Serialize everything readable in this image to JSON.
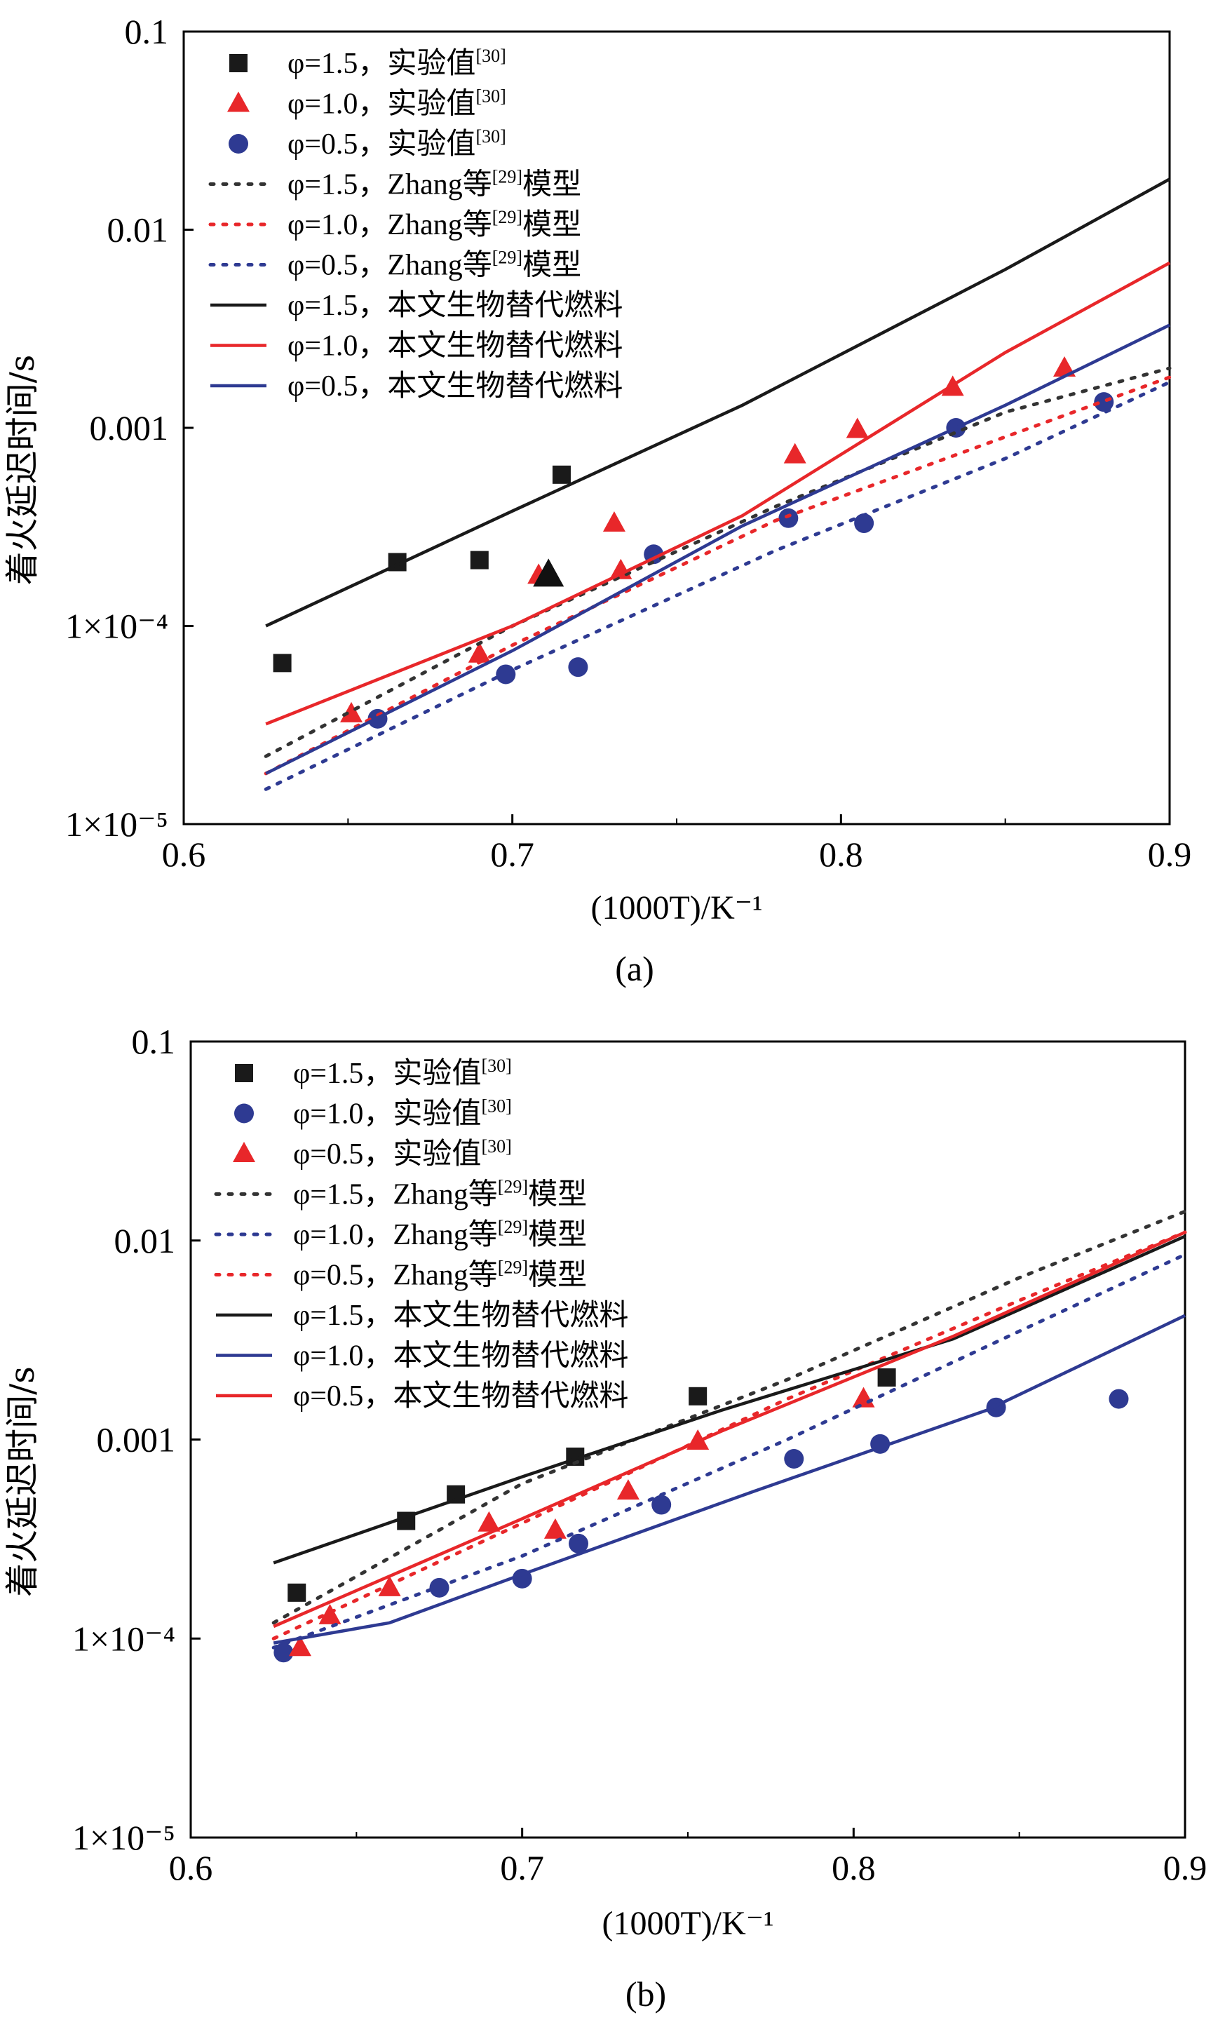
{
  "chart_data": [
    {
      "panel": "(a)",
      "type": "scatter+line",
      "xlabel": "(1000T)/K⁻¹",
      "ylabel": "着火延迟时间/s",
      "xlim": [
        0.6,
        0.9
      ],
      "ylim": [
        1e-05,
        0.1
      ],
      "yscale": "log",
      "xticks": [
        0.6,
        0.7,
        0.8,
        0.9
      ],
      "xtick_labels": [
        "0.6",
        "0.7",
        "0.8",
        "0.9"
      ],
      "yticks": [
        1e-05,
        0.0001,
        0.001,
        0.01,
        0.1
      ],
      "ytick_labels": [
        "1×10⁻⁵",
        "1×10⁻⁴",
        "0.001",
        "0.01",
        "0.1"
      ],
      "legend_position": "top-left",
      "series": [
        {
          "name": "φ=1.5，实验值[30]",
          "label_main": "φ=1.5，实验值",
          "label_sup": "[30]",
          "kind": "scatter",
          "marker": "square",
          "color": "#1a1a1a",
          "x": [
            0.63,
            0.665,
            0.69,
            0.715
          ],
          "y": [
            6.5e-05,
            0.00021,
            0.000215,
            0.00058
          ]
        },
        {
          "name": "φ=1.0，实验值[30]",
          "label_main": "φ=1.0，实验值",
          "label_sup": "[30]",
          "kind": "scatter",
          "marker": "triangle",
          "color": "#e8272a",
          "x": [
            0.651,
            0.69,
            0.708,
            0.731,
            0.733,
            0.786,
            0.805,
            0.834,
            0.868
          ],
          "y": [
            3.6e-05,
            7.2e-05,
            0.00018,
            0.00033,
            0.00019,
            0.00073,
            0.00098,
            0.0016,
            0.002
          ]
        },
        {
          "name": "φ=0.5，实验值[30]",
          "label_main": "φ=0.5，实验值",
          "label_sup": "[30]",
          "kind": "scatter",
          "marker": "circle",
          "color": "#2e3a92",
          "x": [
            0.659,
            0.698,
            0.72,
            0.743,
            0.784,
            0.807,
            0.835,
            0.88
          ],
          "y": [
            3.4e-05,
            5.7e-05,
            6.2e-05,
            0.00023,
            0.00035,
            0.00033,
            0.001,
            0.00135
          ]
        },
        {
          "name": "φ=1.5，Zhang等[29]模型",
          "label_main": "φ=1.5，Zhang等",
          "label_sup": "[29]",
          "label_tail": "模型",
          "kind": "line",
          "dash": "dotted",
          "color": "#333333",
          "x": [
            0.625,
            0.7,
            0.78,
            0.85,
            0.9
          ],
          "y": [
            2.2e-05,
            0.0001,
            0.0004,
            0.0012,
            0.002
          ]
        },
        {
          "name": "φ=1.0，Zhang等[29]模型",
          "label_main": "φ=1.0，Zhang等",
          "label_sup": "[29]",
          "label_tail": "模型",
          "kind": "line",
          "dash": "dotted",
          "color": "#e8272a",
          "x": [
            0.625,
            0.7,
            0.78,
            0.85,
            0.9
          ],
          "y": [
            1.8e-05,
            8e-05,
            0.00034,
            0.0009,
            0.0018
          ]
        },
        {
          "name": "φ=0.5，Zhang等[29]模型",
          "label_main": "φ=0.5，Zhang等",
          "label_sup": "[29]",
          "label_tail": "模型",
          "kind": "line",
          "dash": "dotted",
          "color": "#2e3a92",
          "x": [
            0.625,
            0.7,
            0.78,
            0.85,
            0.9
          ],
          "y": [
            1.5e-05,
            6e-05,
            0.00024,
            0.0007,
            0.0017
          ]
        },
        {
          "name": "φ=1.5，本文生物替代燃料",
          "label_main": "φ=1.5，本文生物替代燃料",
          "label_sup": "",
          "kind": "line",
          "dash": "solid",
          "color": "#1a1a1a",
          "x": [
            0.625,
            0.7,
            0.77,
            0.85,
            0.9
          ],
          "y": [
            0.0001,
            0.00038,
            0.0013,
            0.0063,
            0.018
          ]
        },
        {
          "name": "φ=1.0，本文生物替代燃料",
          "label_main": "φ=1.0，本文生物替代燃料",
          "label_sup": "",
          "kind": "line",
          "dash": "solid",
          "color": "#e8272a",
          "x": [
            0.625,
            0.7,
            0.77,
            0.85,
            0.9
          ],
          "y": [
            3.2e-05,
            0.0001,
            0.00036,
            0.0024,
            0.0068
          ]
        },
        {
          "name": "φ=0.5，本文生物替代燃料",
          "label_main": "φ=0.5，本文生物替代燃料",
          "label_sup": "",
          "kind": "line",
          "dash": "solid",
          "color": "#2e3a92",
          "x": [
            0.625,
            0.7,
            0.77,
            0.85,
            0.9
          ],
          "y": [
            1.8e-05,
            7.5e-05,
            0.00032,
            0.0013,
            0.0033
          ]
        }
      ],
      "annotations": [
        {
          "kind": "marker",
          "marker": "triangle",
          "color": "#111111",
          "x": 0.711,
          "y": 0.00018
        }
      ]
    },
    {
      "panel": "(b)",
      "type": "scatter+line",
      "xlabel": "(1000T)/K⁻¹",
      "ylabel": "着火延迟时间/s",
      "xlim": [
        0.6,
        0.9
      ],
      "ylim": [
        1e-05,
        0.1
      ],
      "yscale": "log",
      "xticks": [
        0.6,
        0.7,
        0.8,
        0.9
      ],
      "xtick_labels": [
        "0.6",
        "0.7",
        "0.8",
        "0.9"
      ],
      "yticks": [
        1e-05,
        0.0001,
        0.001,
        0.01,
        0.1
      ],
      "ytick_labels": [
        "1×10⁻⁵",
        "1×10⁻⁴",
        "0.001",
        "0.01",
        "0.1"
      ],
      "legend_position": "top-left",
      "series": [
        {
          "name": "φ=1.5，实验值[30]",
          "label_main": "φ=1.5，实验值",
          "label_sup": "[30]",
          "kind": "scatter",
          "marker": "square",
          "color": "#1a1a1a",
          "x": [
            0.632,
            0.665,
            0.68,
            0.716,
            0.753,
            0.81
          ],
          "y": [
            0.00017,
            0.00039,
            0.00053,
            0.00082,
            0.00165,
            0.00205
          ]
        },
        {
          "name": "φ=1.0，实验值[30]",
          "label_main": "φ=1.0，实验值",
          "label_sup": "[30]",
          "kind": "scatter",
          "marker": "circle",
          "color": "#2e3a92",
          "x": [
            0.628,
            0.675,
            0.7,
            0.717,
            0.742,
            0.782,
            0.808,
            0.843,
            0.88
          ],
          "y": [
            8.5e-05,
            0.00018,
            0.0002,
            0.0003,
            0.00047,
            0.0008,
            0.00095,
            0.00145,
            0.0016
          ]
        },
        {
          "name": "φ=0.5，实验值[30]",
          "label_main": "φ=0.5，实验值",
          "label_sup": "[30]",
          "kind": "scatter",
          "marker": "triangle",
          "color": "#e8272a",
          "x": [
            0.633,
            0.642,
            0.66,
            0.69,
            0.71,
            0.732,
            0.753,
            0.803
          ],
          "y": [
            9e-05,
            0.00013,
            0.00018,
            0.00038,
            0.00035,
            0.00055,
            0.00098,
            0.0016
          ]
        },
        {
          "name": "φ=1.5，Zhang等[29]模型",
          "label_main": "φ=1.5，Zhang等",
          "label_sup": "[29]",
          "label_tail": "模型",
          "kind": "line",
          "dash": "dotted",
          "color": "#333333",
          "x": [
            0.625,
            0.7,
            0.78,
            0.85,
            0.9
          ],
          "y": [
            0.00012,
            0.0006,
            0.002,
            0.0065,
            0.014
          ]
        },
        {
          "name": "φ=1.0，Zhang等[29]模型",
          "label_main": "φ=1.0，Zhang等",
          "label_sup": "[29]",
          "label_tail": "模型",
          "kind": "line",
          "dash": "dotted",
          "color": "#2e3a92",
          "x": [
            0.625,
            0.7,
            0.78,
            0.85,
            0.9
          ],
          "y": [
            9e-05,
            0.00026,
            0.001,
            0.0035,
            0.0085
          ]
        },
        {
          "name": "φ=0.5，Zhang等[29]模型",
          "label_main": "φ=0.5，Zhang等",
          "label_sup": "[29]",
          "label_tail": "模型",
          "kind": "line",
          "dash": "dotted",
          "color": "#e8272a",
          "x": [
            0.625,
            0.7,
            0.78,
            0.85,
            0.9
          ],
          "y": [
            0.0001,
            0.00038,
            0.0016,
            0.005,
            0.011
          ]
        },
        {
          "name": "φ=1.5，本文生物替代燃料",
          "label_main": "φ=1.5，本文生物替代燃料",
          "label_sup": "",
          "kind": "line",
          "dash": "solid",
          "color": "#1a1a1a",
          "x": [
            0.625,
            0.7,
            0.76,
            0.83,
            0.9
          ],
          "y": [
            0.00024,
            0.00065,
            0.0014,
            0.0032,
            0.0105
          ]
        },
        {
          "name": "φ=1.0，本文生物替代燃料",
          "label_main": "φ=1.0，本文生物替代燃料",
          "label_sup": "",
          "kind": "line",
          "dash": "solid",
          "color": "#2e3a92",
          "x": [
            0.625,
            0.66,
            0.7,
            0.77,
            0.84,
            0.9
          ],
          "y": [
            9.5e-05,
            0.00012,
            0.00021,
            0.00055,
            0.0014,
            0.0042
          ]
        },
        {
          "name": "φ=0.5，本文生物替代燃料",
          "label_main": "φ=0.5，本文生物替代燃料",
          "label_sup": "",
          "kind": "line",
          "dash": "solid",
          "color": "#e8272a",
          "x": [
            0.625,
            0.7,
            0.76,
            0.83,
            0.9
          ],
          "y": [
            0.000115,
            0.0004,
            0.0011,
            0.0033,
            0.011
          ]
        }
      ]
    }
  ]
}
